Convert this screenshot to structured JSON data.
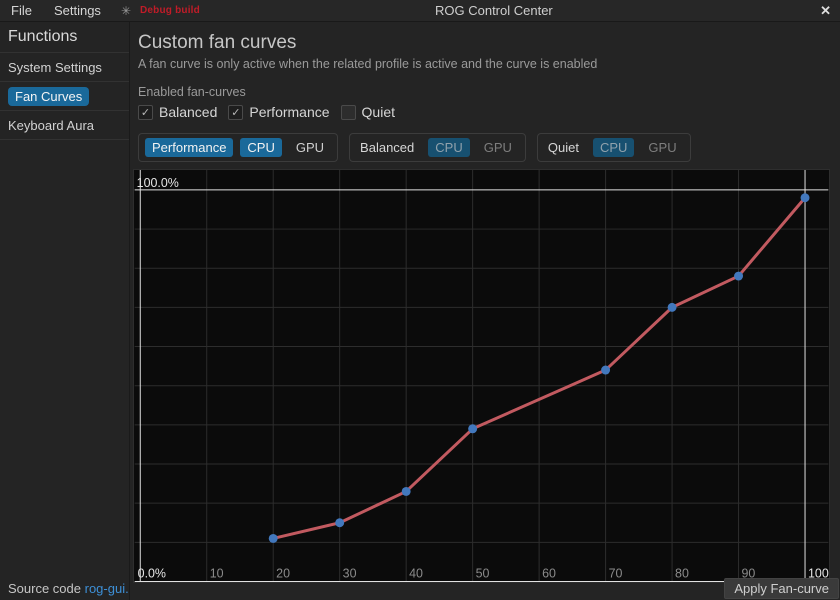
{
  "titlebar": {
    "menu": [
      {
        "label": "File"
      },
      {
        "label": "Settings"
      }
    ],
    "app_menu_icon_glyph": "✳",
    "debug_badge": "Debug build",
    "title": "ROG Control Center",
    "close_glyph": "✕"
  },
  "sidebar": {
    "header": "Functions",
    "items": [
      {
        "label": "System Settings",
        "active": false
      },
      {
        "label": "Fan Curves",
        "active": true
      },
      {
        "label": "Keyboard Aura",
        "active": false
      }
    ],
    "footer_text": "Source code",
    "footer_link": "rog-gui."
  },
  "main": {
    "title": "Custom fan curves",
    "subtitle": "A fan curve is only active when the related profile is active and the curve is enabled",
    "enabled_label": "Enabled fan-curves",
    "check_glyph": "✓",
    "checkboxes": [
      {
        "label": "Balanced",
        "checked": true
      },
      {
        "label": "Performance",
        "checked": true
      },
      {
        "label": "Quiet",
        "checked": false
      }
    ],
    "profile_groups": [
      {
        "profile": "Performance",
        "cpu": "CPU",
        "gpu": "GPU",
        "state": "active"
      },
      {
        "profile": "Balanced",
        "cpu": "CPU",
        "gpu": "GPU",
        "state": "inactive"
      },
      {
        "profile": "Quiet",
        "cpu": "CPU",
        "gpu": "GPU",
        "state": "inactive"
      }
    ],
    "apply_button": "Apply Fan-curve"
  },
  "chart_data": {
    "type": "line",
    "series": [
      {
        "name": "Performance CPU fan curve",
        "x": [
          20,
          30,
          40,
          50,
          70,
          80,
          90,
          100
        ],
        "y": [
          11,
          15,
          23,
          39,
          54,
          70,
          78,
          98
        ]
      }
    ],
    "x_ticks": [
      10,
      20,
      30,
      40,
      50,
      60,
      70,
      80,
      90,
      100
    ],
    "y_top_label": "100.0%",
    "y_bottom_label": "0.0%",
    "xlim": [
      0,
      100
    ],
    "ylim": [
      0,
      100
    ],
    "grid": true,
    "grid_step": 10,
    "colors": {
      "line": "#c25a60",
      "point": "#4278bd",
      "grid": "#2d2d2d",
      "axis_bright": "#e2e2e2",
      "tick_text": "#8b8b8b",
      "tick_text_bright": "#e6e6e6"
    }
  },
  "colors": {
    "accent_selected": "#1a699a",
    "accent_dimmed": "#175070",
    "debug_red": "#c01c28",
    "link_blue": "#3d8fd6"
  }
}
